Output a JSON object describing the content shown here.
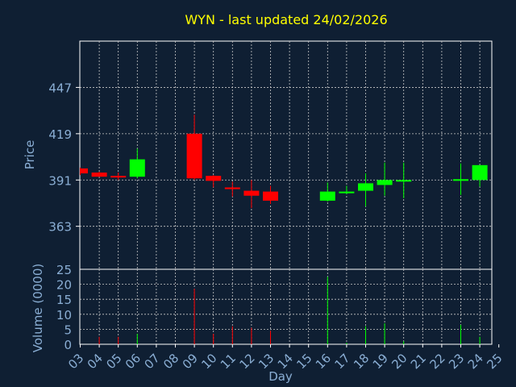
{
  "chart_data": {
    "type": "candlestick",
    "title": "WYN - last updated 24/02/2026",
    "xlabel": "Day",
    "price_panel": {
      "ylabel": "Price",
      "yticks": [
        363,
        391,
        419,
        447
      ],
      "ylim": [
        337,
        475
      ],
      "grid": true
    },
    "volume_panel": {
      "ylabel": "Volume (0000)",
      "yticks": [
        0,
        5,
        10,
        15,
        20,
        25
      ],
      "ylim": [
        0,
        25
      ],
      "grid": true
    },
    "x_ticks": [
      "03",
      "04",
      "05",
      "06",
      "07",
      "08",
      "09",
      "10",
      "11",
      "12",
      "13",
      "14",
      "15",
      "16",
      "17",
      "18",
      "19",
      "20",
      "21",
      "22",
      "23",
      "24",
      "25"
    ],
    "candles": [
      {
        "day": "03",
        "open": 398.0,
        "high": 398.5,
        "low": 394.0,
        "close": 395.0,
        "volume": 0
      },
      {
        "day": "04",
        "open": 395.5,
        "high": 396.0,
        "low": 393.0,
        "close": 393.0,
        "volume": 2.5
      },
      {
        "day": "05",
        "open": 393.5,
        "high": 395.5,
        "low": 391.0,
        "close": 392.5,
        "volume": 2.5
      },
      {
        "day": "06",
        "open": 393.0,
        "high": 410.0,
        "low": 392.0,
        "close": 403.5,
        "volume": 3.5
      },
      {
        "day": "09",
        "open": 419.0,
        "high": 430.5,
        "low": 391.0,
        "close": 392.0,
        "volume": 18.5
      },
      {
        "day": "10",
        "open": 393.5,
        "high": 394.0,
        "low": 386.5,
        "close": 390.5,
        "volume": 3.5
      },
      {
        "day": "11",
        "open": 386.5,
        "high": 390.0,
        "low": 381.0,
        "close": 385.5,
        "volume": 6.0
      },
      {
        "day": "12",
        "open": 384.5,
        "high": 391.0,
        "low": 374.0,
        "close": 381.5,
        "volume": 5.5
      },
      {
        "day": "13",
        "open": 384.0,
        "high": 387.5,
        "low": 376.5,
        "close": 378.5,
        "volume": 4.5
      },
      {
        "day": "16",
        "open": 378.5,
        "high": 389.5,
        "low": 378.0,
        "close": 384.0,
        "volume": 22.5
      },
      {
        "day": "17",
        "open": 383.0,
        "high": 387.5,
        "low": 382.5,
        "close": 384.0,
        "volume": 0.5
      },
      {
        "day": "18",
        "open": 384.5,
        "high": 395.0,
        "low": 375.0,
        "close": 389.0,
        "volume": 6.0
      },
      {
        "day": "19",
        "open": 388.0,
        "high": 401.5,
        "low": 381.5,
        "close": 391.0,
        "volume": 7.0
      },
      {
        "day": "20",
        "open": 390.5,
        "high": 401.5,
        "low": 380.0,
        "close": 391.0,
        "volume": 1.0
      },
      {
        "day": "23",
        "open": 390.5,
        "high": 401.0,
        "low": 382.0,
        "close": 391.5,
        "volume": 6.5
      },
      {
        "day": "24",
        "open": 391.0,
        "high": 400.0,
        "low": 387.0,
        "close": 400.0,
        "volume": 2.5
      }
    ],
    "colors": {
      "background": "#0f1f33",
      "axis_text": "#8aaed4",
      "title": "#ffff00",
      "grid": "#c8c8c8",
      "frame": "#ffffff",
      "up": "#00ff00",
      "down": "#ff0000"
    }
  }
}
